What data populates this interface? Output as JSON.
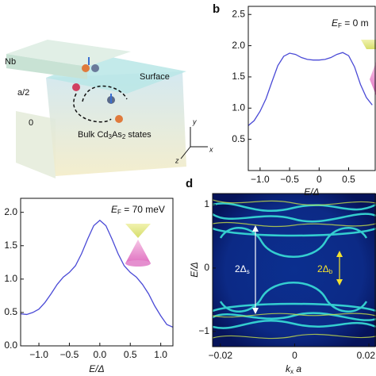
{
  "illustration": {
    "metal": "Nb",
    "height": "a/2",
    "origin": "0",
    "surface": "Surface",
    "bulk": [
      "Bulk Cd",
      "3",
      "As",
      "2",
      " states"
    ],
    "axis_y": "y",
    "axis_z": "z",
    "axis_x": "x"
  },
  "chart_data": [
    {
      "type": "line",
      "panel": "b",
      "x": [
        -1.2,
        -1.1,
        -1.0,
        -0.9,
        -0.8,
        -0.7,
        -0.6,
        -0.5,
        -0.4,
        -0.3,
        -0.2,
        -0.1,
        0,
        0.1,
        0.2,
        0.3,
        0.4,
        0.5,
        0.6,
        0.7,
        0.8,
        0.9
      ],
      "series": [
        {
          "color": "#4a4ad6",
          "values": [
            0.72,
            0.8,
            0.95,
            1.15,
            1.42,
            1.68,
            1.83,
            1.88,
            1.86,
            1.81,
            1.78,
            1.77,
            1.77,
            1.78,
            1.81,
            1.86,
            1.89,
            1.84,
            1.66,
            1.38,
            1.17,
            1.05
          ]
        }
      ],
      "xlim": [
        -1.2,
        0.95
      ],
      "xticks": [
        {
          "value": -1,
          "label": "−1.0"
        },
        {
          "value": -0.5,
          "label": "−0.5"
        },
        0,
        0.5
      ],
      "ylim": [
        0,
        2.63
      ],
      "yticks": [
        0.5,
        {
          "value": 1,
          "label": "1.0"
        },
        1.5,
        {
          "value": 2,
          "label": "2.0"
        },
        2.5
      ],
      "xlabel": "E/Δ",
      "annotation": [
        "E",
        "F",
        " = 0 m"
      ]
    },
    {
      "type": "line",
      "x": [
        -1.3,
        -1.2,
        -1.1,
        -1.0,
        -0.9,
        -0.8,
        -0.7,
        -0.6,
        -0.5,
        -0.4,
        -0.3,
        -0.2,
        -0.1,
        0,
        0.1,
        0.2,
        0.3,
        0.4,
        0.5,
        0.6,
        0.7,
        0.8,
        0.9,
        1.0,
        1.1,
        1.2
      ],
      "series": [
        {
          "color": "#4a4ad6",
          "values": [
            0.48,
            0.47,
            0.5,
            0.55,
            0.65,
            0.78,
            0.92,
            1.03,
            1.1,
            1.2,
            1.38,
            1.6,
            1.8,
            1.88,
            1.8,
            1.6,
            1.38,
            1.2,
            1.1,
            1.03,
            0.92,
            0.78,
            0.6,
            0.45,
            0.32,
            0.28
          ]
        }
      ],
      "xlim": [
        -1.3,
        1.2
      ],
      "xticks": [
        {
          "value": -1,
          "label": "−1.0"
        },
        {
          "value": -0.5,
          "label": "−0.5"
        },
        {
          "value": 0,
          "label": "0.0"
        },
        0.5,
        {
          "value": 1,
          "label": "1.0"
        }
      ],
      "ylim": [
        0,
        2.21
      ],
      "yticks": [
        {
          "value": 0,
          "label": "0.0"
        },
        0.5,
        {
          "value": 1,
          "label": "1.0"
        },
        1.5,
        {
          "value": 2,
          "label": "2.0"
        }
      ],
      "xlabel": "E/Δ",
      "annotation": [
        "E",
        "F",
        " = 70 meV"
      ]
    },
    {
      "type": "heatmap",
      "panel": "d",
      "xlim": [
        -0.0221,
        0.0217
      ],
      "xticks": [
        {
          "value": -0.02,
          "label": "−0.02"
        },
        0,
        0.02
      ],
      "ylim": [
        -1.24,
        1.175
      ],
      "yticks": [
        {
          "value": -1,
          "label": "−1"
        },
        0,
        1
      ],
      "xlabel": [
        "k",
        "x",
        " a"
      ],
      "ylabel": "E/Δ",
      "annotations": [
        [
          "2Δ",
          "s"
        ],
        [
          "2Δ",
          "b"
        ]
      ]
    }
  ]
}
